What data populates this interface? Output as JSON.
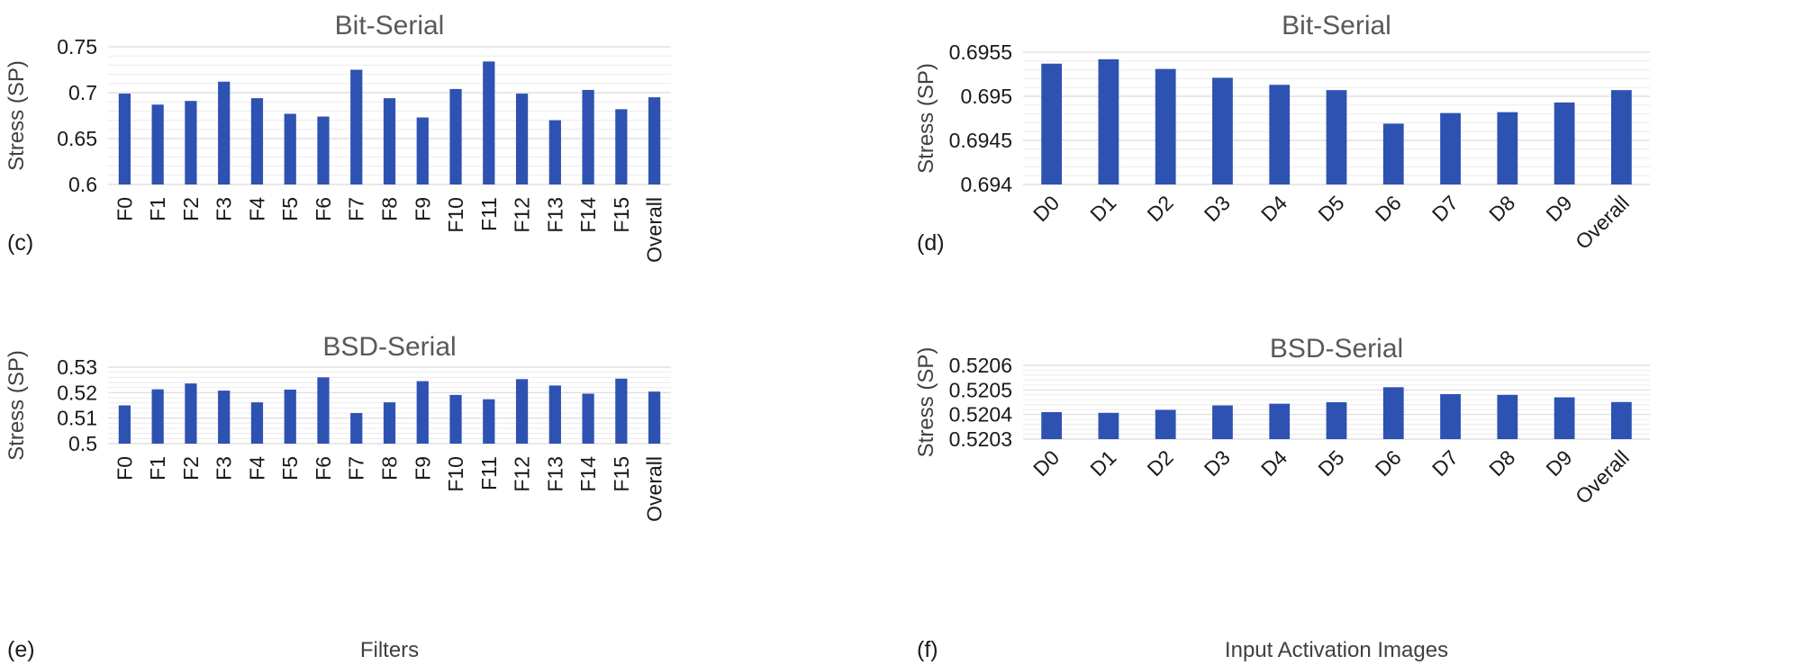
{
  "panels": [
    {
      "id": "c",
      "panel_label": "(c)",
      "chart_data": {
        "type": "bar",
        "title": "Bit-Serial",
        "ylabel": "Stress (SP)",
        "xlabel": "",
        "categories": [
          "F0",
          "F1",
          "F2",
          "F3",
          "F4",
          "F5",
          "F6",
          "F7",
          "F8",
          "F9",
          "F10",
          "F11",
          "F12",
          "F13",
          "F14",
          "F15",
          "Overall"
        ],
        "values": [
          0.699,
          0.687,
          0.691,
          0.712,
          0.694,
          0.677,
          0.674,
          0.725,
          0.694,
          0.673,
          0.704,
          0.734,
          0.699,
          0.67,
          0.703,
          0.682,
          0.695
        ],
        "ylim": [
          0.6,
          0.75
        ],
        "yticks": [
          "0.6",
          "0.65",
          "0.7",
          "0.75"
        ],
        "ytick_values": [
          0.6,
          0.65,
          0.7,
          0.75
        ],
        "x_tick_rotation": "vertical",
        "grid": true,
        "legend": "none"
      }
    },
    {
      "id": "d",
      "panel_label": "(d)",
      "chart_data": {
        "type": "bar",
        "title": "Bit-Serial",
        "ylabel": "Stress (SP)",
        "xlabel": "",
        "categories": [
          "D0",
          "D1",
          "D2",
          "D3",
          "D4",
          "D5",
          "D6",
          "D7",
          "D8",
          "D9",
          "Overall"
        ],
        "values": [
          0.69537,
          0.69542,
          0.69531,
          0.69521,
          0.69513,
          0.69507,
          0.69469,
          0.69481,
          0.69482,
          0.69493,
          0.69507
        ],
        "ylim": [
          0.694,
          0.6955
        ],
        "yticks": [
          "0.694",
          "0.6945",
          "0.695",
          "0.6955"
        ],
        "ytick_values": [
          0.694,
          0.6945,
          0.695,
          0.6955
        ],
        "x_tick_rotation": "diagonal",
        "grid": true,
        "legend": "none"
      }
    },
    {
      "id": "e",
      "panel_label": "(e)",
      "chart_data": {
        "type": "bar",
        "title": "BSD-Serial",
        "ylabel": "Stress (SP)",
        "xlabel": "Filters",
        "categories": [
          "F0",
          "F1",
          "F2",
          "F3",
          "F4",
          "F5",
          "F6",
          "F7",
          "F8",
          "F9",
          "F10",
          "F11",
          "F12",
          "F13",
          "F14",
          "F15",
          "Overall"
        ],
        "values": [
          0.515,
          0.5213,
          0.5236,
          0.5208,
          0.5162,
          0.5212,
          0.526,
          0.512,
          0.5162,
          0.5245,
          0.5191,
          0.5174,
          0.5253,
          0.5228,
          0.5196,
          0.5255,
          0.5204
        ],
        "ylim": [
          0.5,
          0.53
        ],
        "yticks": [
          "0.5",
          "0.51",
          "0.52",
          "0.53"
        ],
        "ytick_values": [
          0.5,
          0.51,
          0.52,
          0.53
        ],
        "x_tick_rotation": "vertical",
        "grid": true,
        "legend": "none"
      }
    },
    {
      "id": "f",
      "panel_label": "(f)",
      "chart_data": {
        "type": "bar",
        "title": "BSD-Serial",
        "ylabel": "Stress (SP)",
        "xlabel": "Input Activation Images",
        "categories": [
          "D0",
          "D1",
          "D2",
          "D3",
          "D4",
          "D5",
          "D6",
          "D7",
          "D8",
          "D9",
          "Overall"
        ],
        "values": [
          0.52041,
          0.520407,
          0.520419,
          0.520437,
          0.520444,
          0.52045,
          0.520511,
          0.520483,
          0.52048,
          0.52047,
          0.520451
        ],
        "ylim": [
          0.5203,
          0.5206
        ],
        "yticks": [
          "0.5203",
          "0.5204",
          "0.5205",
          "0.5206"
        ],
        "ytick_values": [
          0.5203,
          0.5204,
          0.5205,
          0.5206
        ],
        "x_tick_rotation": "diagonal",
        "grid": true,
        "legend": "none"
      }
    }
  ],
  "colors": {
    "bar": "#2e52b2",
    "grid": "#d9d9d9",
    "title": "#595959"
  }
}
